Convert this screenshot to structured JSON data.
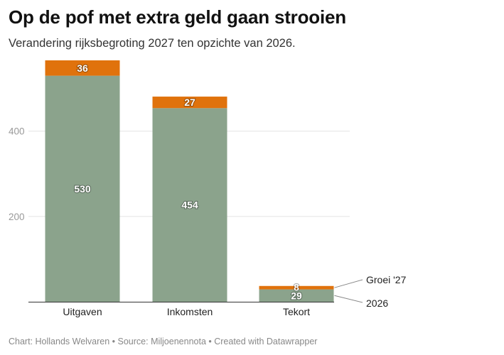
{
  "header": {
    "title": "Op de pof met extra geld gaan strooien",
    "subtitle": "Verandering rijksbegroting 2027 ten opzichte van 2026."
  },
  "footer": {
    "text": "Chart: Hollands Welvaren • Source: Miljoenennota • Created with Datawrapper"
  },
  "chart_data": {
    "type": "bar",
    "stacked": true,
    "title": "Op de pof met extra geld gaan strooien",
    "subtitle": "Verandering rijksbegroting 2027 ten opzichte van 2026.",
    "categories": [
      "Uitgaven",
      "Inkomsten",
      "Tekort"
    ],
    "series": [
      {
        "name": "2026",
        "values": [
          530,
          454,
          29
        ],
        "color": "#8ba38c"
      },
      {
        "name": "Groei '27",
        "values": [
          36,
          27,
          8
        ],
        "color": "#e0720c"
      }
    ],
    "yticks": [
      200,
      400
    ],
    "ylim": [
      0,
      566
    ],
    "grid": true,
    "legend": "right, inline labels",
    "source": "Chart: Hollands Welvaren • Source: Miljoenennota • Created with Datawrapper"
  }
}
